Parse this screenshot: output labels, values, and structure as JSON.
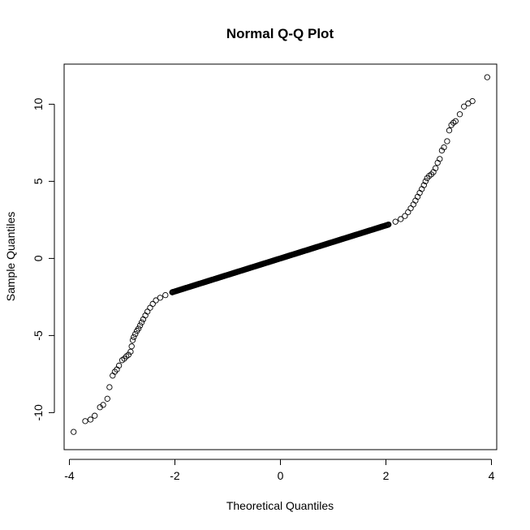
{
  "chart_data": {
    "type": "scatter",
    "title": "Normal Q-Q Plot",
    "xlabel": "Theoretical Quantiles",
    "ylabel": "Sample Quantiles",
    "xlim": [
      -4.1,
      4.1
    ],
    "ylim": [
      -12.4,
      12.6
    ],
    "xticks": [
      -4,
      -2,
      0,
      2,
      4
    ],
    "yticks": [
      -10,
      -5,
      0,
      5,
      10
    ],
    "xtick_labels": [
      "-4",
      "-2",
      "0",
      "2",
      "4"
    ],
    "ytick_labels": [
      "-10",
      "-5",
      "0",
      "5",
      "10"
    ],
    "grid": false,
    "marker": "open-circle",
    "point_color": "#000000",
    "series": [
      {
        "points": [
          [
            -3.92,
            -11.25
          ],
          [
            -3.7,
            -10.55
          ],
          [
            -3.6,
            -10.45
          ],
          [
            -3.52,
            -10.2
          ],
          [
            -3.42,
            -9.65
          ],
          [
            -3.36,
            -9.5
          ],
          [
            -3.28,
            -9.1
          ],
          [
            -3.24,
            -8.35
          ],
          [
            -3.18,
            -7.6
          ],
          [
            -3.14,
            -7.35
          ],
          [
            -3.1,
            -7.2
          ],
          [
            -3.06,
            -6.95
          ],
          [
            -3.0,
            -6.6
          ],
          [
            -2.96,
            -6.5
          ],
          [
            -2.92,
            -6.35
          ],
          [
            -2.88,
            -6.25
          ],
          [
            -2.84,
            -6.05
          ],
          [
            -2.82,
            -5.7
          ],
          [
            -2.8,
            -5.3
          ],
          [
            -2.78,
            -5.1
          ],
          [
            -2.75,
            -4.9
          ],
          [
            -2.72,
            -4.7
          ],
          [
            -2.69,
            -4.55
          ],
          [
            -2.66,
            -4.35
          ],
          [
            -2.63,
            -4.15
          ],
          [
            -2.6,
            -3.95
          ],
          [
            -2.56,
            -3.7
          ],
          [
            -2.52,
            -3.45
          ],
          [
            -2.47,
            -3.2
          ],
          [
            -2.42,
            -2.95
          ],
          [
            -2.36,
            -2.72
          ],
          [
            -2.28,
            -2.55
          ],
          [
            -2.18,
            -2.38
          ],
          [
            -2.05,
            -2.2
          ],
          [
            2.05,
            2.2
          ],
          [
            2.18,
            2.38
          ],
          [
            2.28,
            2.55
          ],
          [
            2.36,
            2.75
          ],
          [
            2.42,
            3.0
          ],
          [
            2.47,
            3.25
          ],
          [
            2.52,
            3.5
          ],
          [
            2.56,
            3.75
          ],
          [
            2.6,
            4.0
          ],
          [
            2.64,
            4.25
          ],
          [
            2.68,
            4.5
          ],
          [
            2.72,
            4.75
          ],
          [
            2.75,
            5.0
          ],
          [
            2.78,
            5.2
          ],
          [
            2.82,
            5.35
          ],
          [
            2.86,
            5.45
          ],
          [
            2.9,
            5.6
          ],
          [
            2.94,
            5.85
          ],
          [
            2.98,
            6.2
          ],
          [
            3.02,
            6.45
          ],
          [
            3.06,
            7.0
          ],
          [
            3.1,
            7.2
          ],
          [
            3.16,
            7.6
          ],
          [
            3.2,
            8.3
          ],
          [
            3.24,
            8.65
          ],
          [
            3.28,
            8.8
          ],
          [
            3.32,
            8.9
          ],
          [
            3.4,
            9.35
          ],
          [
            3.48,
            9.85
          ],
          [
            3.56,
            10.05
          ],
          [
            3.64,
            10.2
          ],
          [
            3.92,
            11.75
          ]
        ],
        "center_segment": {
          "x_from": -2.05,
          "x_to": 2.05,
          "slope": 1.07,
          "intercept": 0.0
        }
      }
    ]
  }
}
